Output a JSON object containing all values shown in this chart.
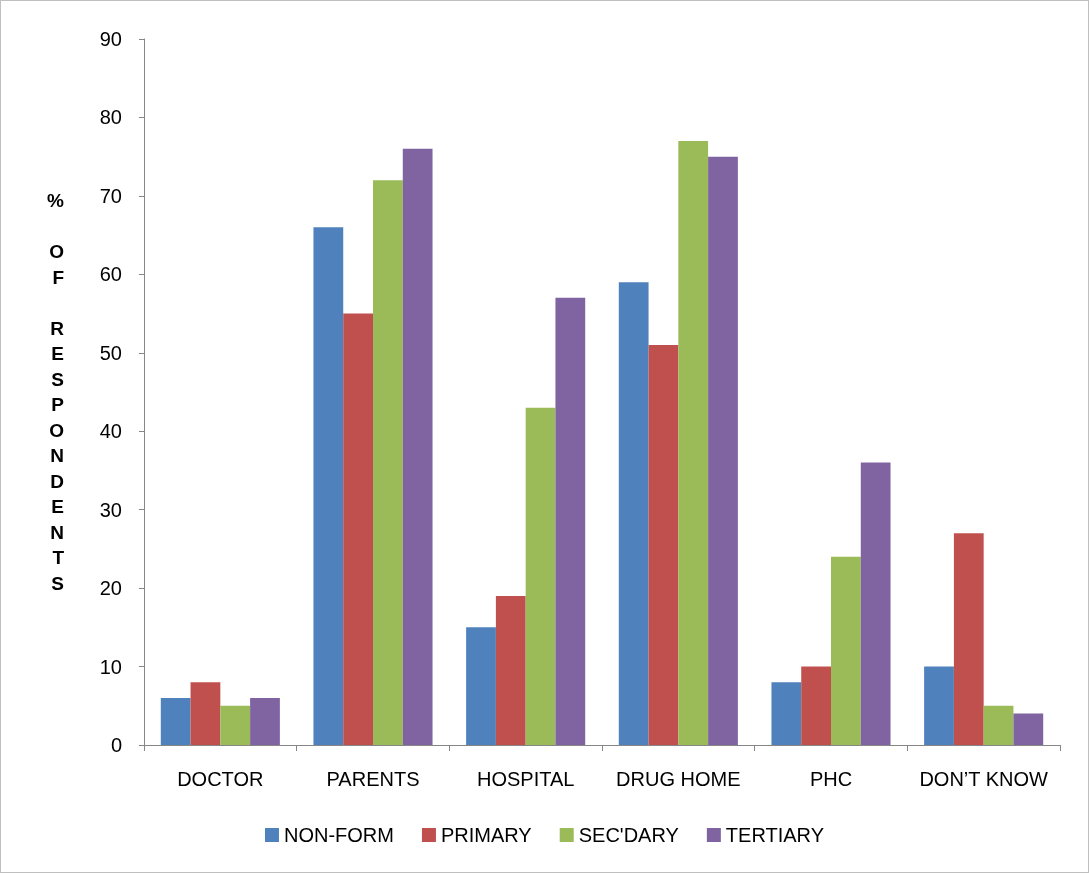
{
  "chart_data": {
    "type": "bar",
    "ylabel": "% OF RESPONDENTS",
    "categories": [
      "DOCTOR",
      "PARENTS",
      "HOSPITAL",
      "DRUG HOME",
      "PHC",
      "DON’T KNOW"
    ],
    "series": [
      {
        "name": "NON-FORM",
        "color": "#4f81bd",
        "values": [
          6,
          66,
          15,
          59,
          8,
          10
        ]
      },
      {
        "name": "PRIMARY",
        "color": "#c0504d",
        "values": [
          8,
          55,
          19,
          51,
          10,
          27
        ]
      },
      {
        "name": "SEC'DARY",
        "color": "#9bbb59",
        "values": [
          5,
          72,
          43,
          77,
          24,
          5
        ]
      },
      {
        "name": "TERTIARY",
        "color": "#8064a2",
        "values": [
          6,
          76,
          57,
          75,
          36,
          4
        ]
      }
    ],
    "ylim": [
      0,
      90
    ],
    "yticks": [
      0,
      10,
      20,
      30,
      40,
      50,
      60,
      70,
      80,
      90
    ],
    "grid": false,
    "legend": "bottom"
  }
}
